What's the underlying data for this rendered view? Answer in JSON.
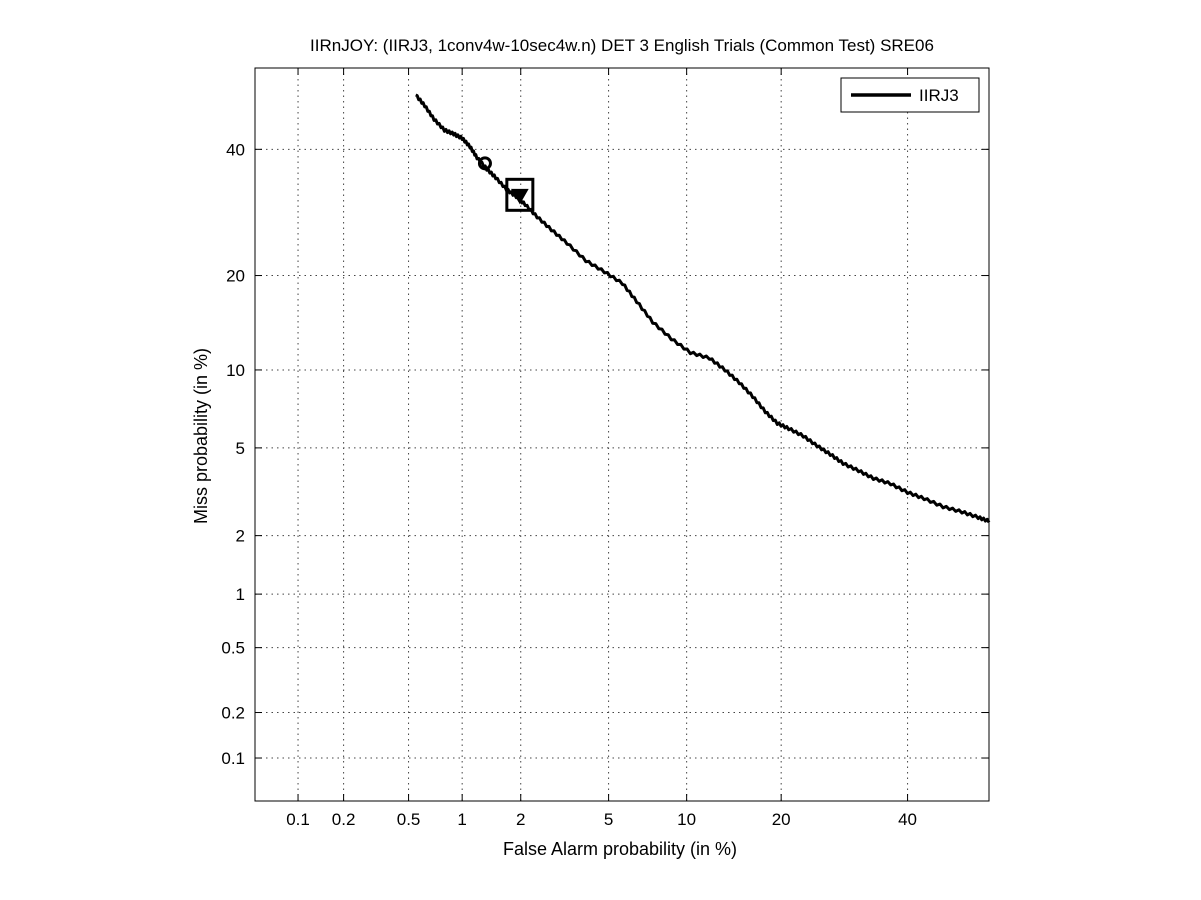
{
  "chart_data": {
    "type": "line",
    "title": "IIRnJOY: (IIRJ3, 1conv4w-10sec4w.n) DET 3 English Trials (Common Test) SRE06",
    "xlabel": "False Alarm probability (in %)",
    "ylabel": "Miss probability (in %)",
    "x_scale": "normal-deviate",
    "y_scale": "normal-deviate",
    "xlim": [
      0.05,
      55
    ],
    "ylim": [
      0.05,
      55
    ],
    "x_ticks": [
      0.1,
      0.2,
      0.5,
      1,
      2,
      5,
      10,
      20,
      40
    ],
    "x_tick_labels": [
      "0.1",
      "0.2",
      "0.5",
      "1",
      "2",
      "5",
      "10",
      "20",
      "40"
    ],
    "y_ticks": [
      0.1,
      0.2,
      0.5,
      1,
      2,
      5,
      10,
      20,
      40
    ],
    "y_tick_labels": [
      "0.1",
      "0.2",
      "0.5",
      "1",
      "2",
      "5",
      "10",
      "20",
      "40"
    ],
    "grid": true,
    "legend_position": "top-right",
    "series": [
      {
        "name": "IIRJ3",
        "color": "#000000",
        "x": [
          0.55,
          0.62,
          0.7,
          0.8,
          0.9,
          1.0,
          1.1,
          1.2,
          1.35,
          1.5,
          1.7,
          1.9,
          2.1,
          2.4,
          2.8,
          3.3,
          4.0,
          4.8,
          5.7,
          6.5,
          7.5,
          8.8,
          10.3,
          12.0,
          13.5,
          15.0,
          16.5,
          18.0,
          19.5,
          21.0,
          23.0,
          25.0,
          27.0,
          29.0,
          31.5,
          34.0,
          37.0,
          40.0,
          43.0,
          46.5,
          50.0,
          53.0,
          55.0
        ],
        "y": [
          50.0,
          48.0,
          45.5,
          43.5,
          42.8,
          42.0,
          40.5,
          38.5,
          36.5,
          35.0,
          33.0,
          31.8,
          30.5,
          28.5,
          26.5,
          24.5,
          22.0,
          20.5,
          19.0,
          16.8,
          14.5,
          12.8,
          11.5,
          11.0,
          10.0,
          9.0,
          8.0,
          7.0,
          6.3,
          6.0,
          5.6,
          5.1,
          4.7,
          4.3,
          4.0,
          3.7,
          3.5,
          3.2,
          3.0,
          2.75,
          2.6,
          2.45,
          2.35
        ]
      }
    ],
    "markers": [
      {
        "shape": "circle",
        "x": 1.32,
        "y": 37.5
      },
      {
        "shape": "triangle-down",
        "x": 1.98,
        "y": 32.0
      },
      {
        "shape": "square",
        "x": 1.98,
        "y": 32.0
      }
    ]
  }
}
